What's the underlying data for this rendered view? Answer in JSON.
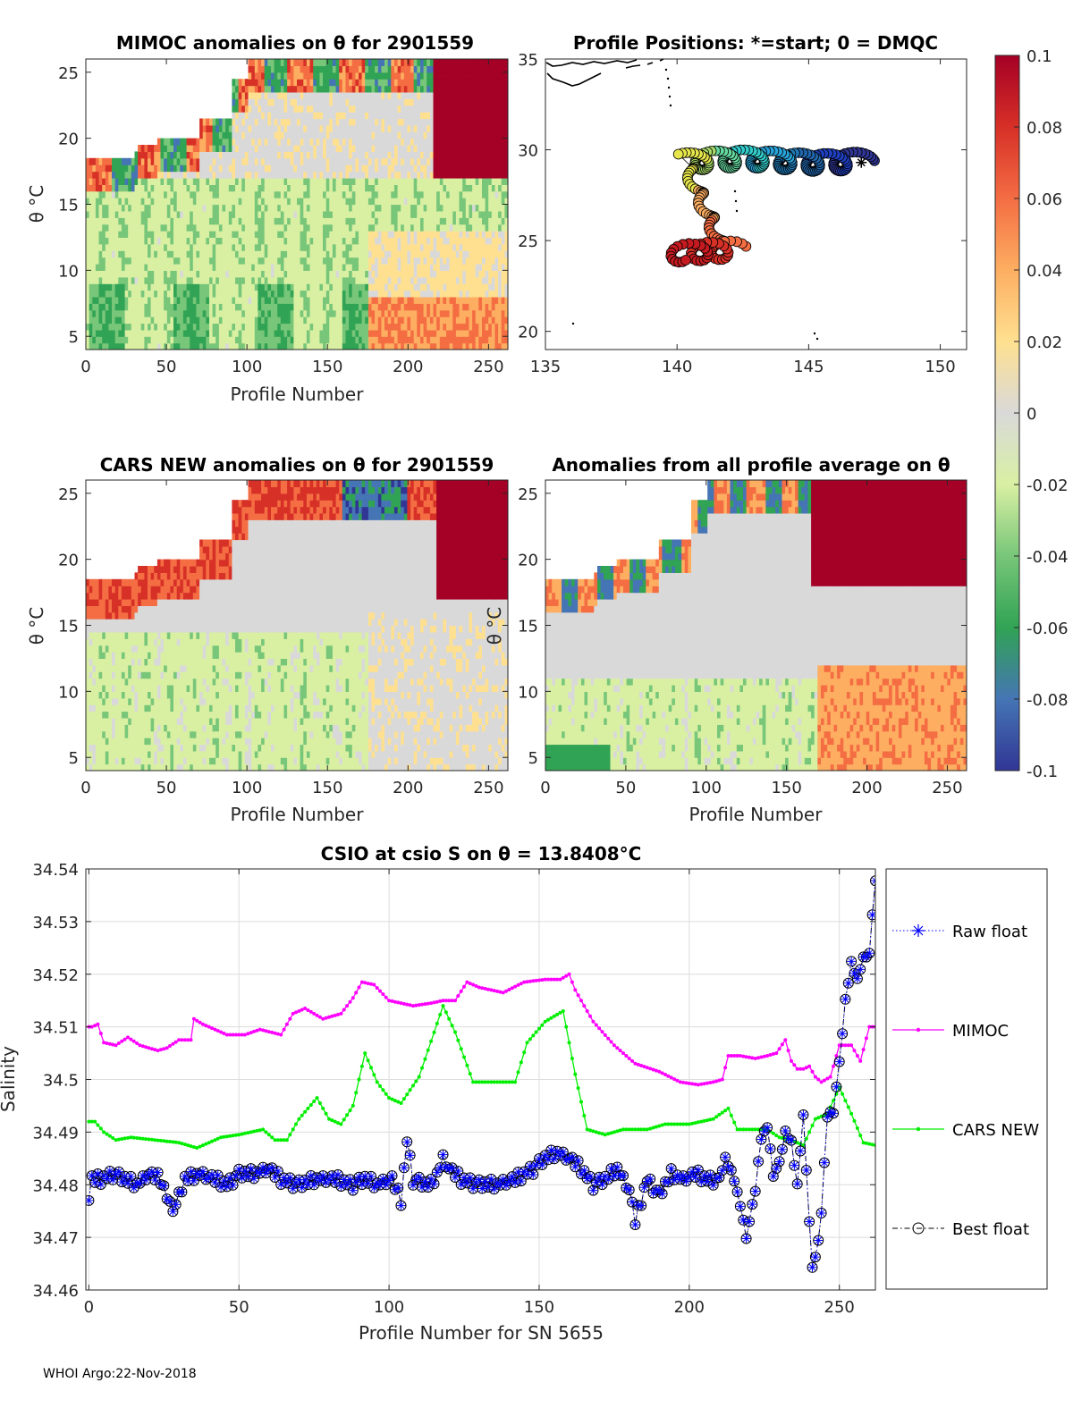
{
  "footer": "WHOI Argo:22-Nov-2018",
  "colors": {
    "mimoc": "#ff00ff",
    "cars": "#00ee00",
    "raw": "#0000ff",
    "best": "#000000"
  },
  "colorbar": {
    "ticks": [
      "0.1",
      "0.08",
      "0.06",
      "0.04",
      "0.02",
      "0",
      "-0.02",
      "-0.04",
      "-0.06",
      "-0.08",
      "-0.1"
    ],
    "palette": [
      "#a50026",
      "#d73027",
      "#f46d43",
      "#fdae61",
      "#fee090",
      "#d9d9d9",
      "#d9f0a3",
      "#78c679",
      "#31a354",
      "#4575b4",
      "#313695"
    ]
  },
  "chart_data": [
    {
      "id": "mimoc",
      "type": "heatmap",
      "title": "MIMOC anomalies on θ  for 2901559",
      "xlabel": "Profile Number",
      "ylabel": "θ °C",
      "xticks": [
        "0",
        "50",
        "100",
        "150",
        "200",
        "250"
      ],
      "yticks": [
        "5",
        "10",
        "15",
        "20",
        "25"
      ],
      "xlim": [
        0,
        262
      ],
      "ylim": [
        4,
        26
      ]
    },
    {
      "id": "positions",
      "type": "scatter",
      "title": "Profile Positions: *=start; 0 = DMQC",
      "xticks": [
        "135",
        "140",
        "145",
        "150"
      ],
      "yticks": [
        "20",
        "25",
        "30",
        "35"
      ],
      "xlim": [
        135,
        151
      ],
      "ylim": [
        19,
        35
      ],
      "start": [
        147,
        29.3
      ]
    },
    {
      "id": "cars",
      "type": "heatmap",
      "title": "CARS NEW anomalies on θ for 2901559",
      "xlabel": "Profile Number",
      "ylabel": "θ °C",
      "xticks": [
        "0",
        "50",
        "100",
        "150",
        "200",
        "250"
      ],
      "yticks": [
        "5",
        "10",
        "15",
        "20",
        "25"
      ],
      "xlim": [
        0,
        262
      ],
      "ylim": [
        4,
        26
      ]
    },
    {
      "id": "avg",
      "type": "heatmap",
      "title": "Anomalies from all profile average on θ",
      "xlabel": "Profile Number",
      "ylabel": "θ °C",
      "xticks": [
        "0",
        "50",
        "100",
        "150",
        "200",
        "250"
      ],
      "yticks": [
        "5",
        "10",
        "15",
        "20",
        "25"
      ],
      "xlim": [
        0,
        262
      ],
      "ylim": [
        4,
        26
      ]
    },
    {
      "id": "salinity",
      "type": "line",
      "title": "CSIO at csio S on θ = 13.8408°C",
      "xlabel": "Profile Number for SN 5655",
      "ylabel": "Salinity",
      "xticks": [
        "0",
        "50",
        "100",
        "150",
        "200",
        "250"
      ],
      "yticks": [
        "34.46",
        "34.47",
        "34.48",
        "34.49",
        "34.5",
        "34.51",
        "34.52",
        "34.53",
        "34.54"
      ],
      "xlim": [
        -1,
        262
      ],
      "ylim": [
        34.46,
        34.54
      ],
      "legend": [
        "Raw float",
        "MIMOC",
        "CARS NEW",
        "Best float"
      ],
      "mimoc_keys": [
        [
          0,
          34.51
        ],
        [
          1,
          34.51
        ],
        [
          3,
          34.5105
        ],
        [
          5,
          34.507
        ],
        [
          9,
          34.5065
        ],
        [
          13,
          34.508
        ],
        [
          17,
          34.5065
        ],
        [
          23,
          34.5055
        ],
        [
          26,
          34.506
        ],
        [
          30,
          34.5075
        ],
        [
          34,
          34.5075
        ],
        [
          35,
          34.5115
        ],
        [
          38,
          34.5105
        ],
        [
          42,
          34.5095
        ],
        [
          46,
          34.5085
        ],
        [
          52,
          34.5085
        ],
        [
          57,
          34.5095
        ],
        [
          64,
          34.5085
        ],
        [
          68,
          34.5125
        ],
        [
          72,
          34.5135
        ],
        [
          78,
          34.5115
        ],
        [
          84,
          34.5125
        ],
        [
          88,
          34.5155
        ],
        [
          91,
          34.5185
        ],
        [
          95,
          34.518
        ],
        [
          100,
          34.515
        ],
        [
          108,
          34.514
        ],
        [
          114,
          34.5145
        ],
        [
          118,
          34.515
        ],
        [
          122,
          34.515
        ],
        [
          126,
          34.5185
        ],
        [
          130,
          34.5175
        ],
        [
          138,
          34.5165
        ],
        [
          145,
          34.5185
        ],
        [
          152,
          34.519
        ],
        [
          157,
          34.519
        ],
        [
          160,
          34.52
        ],
        [
          162,
          34.517
        ],
        [
          168,
          34.511
        ],
        [
          175,
          34.5065
        ],
        [
          182,
          34.503
        ],
        [
          190,
          34.5015
        ],
        [
          197,
          34.4995
        ],
        [
          203,
          34.499
        ],
        [
          208,
          34.4995
        ],
        [
          211,
          34.5
        ],
        [
          213,
          34.5045
        ],
        [
          217,
          34.5045
        ],
        [
          222,
          34.504
        ],
        [
          226,
          34.5045
        ],
        [
          229,
          34.505
        ],
        [
          232,
          34.5075
        ],
        [
          234,
          34.5035
        ],
        [
          236,
          34.502
        ],
        [
          238,
          34.502
        ],
        [
          240,
          34.5025
        ],
        [
          242,
          34.5005
        ],
        [
          244,
          34.4995
        ],
        [
          247,
          34.5005
        ],
        [
          250,
          34.5065
        ],
        [
          254,
          34.5065
        ],
        [
          257,
          34.5035
        ],
        [
          260,
          34.51
        ],
        [
          262,
          34.51
        ]
      ],
      "cars_keys": [
        [
          0,
          34.492
        ],
        [
          2,
          34.492
        ],
        [
          5,
          34.49
        ],
        [
          9,
          34.4885
        ],
        [
          14,
          34.489
        ],
        [
          22,
          34.4885
        ],
        [
          30,
          34.488
        ],
        [
          36,
          34.487
        ],
        [
          44,
          34.489
        ],
        [
          50,
          34.4895
        ],
        [
          58,
          34.4905
        ],
        [
          62,
          34.4885
        ],
        [
          66,
          34.4885
        ],
        [
          70,
          34.4925
        ],
        [
          76,
          34.4965
        ],
        [
          80,
          34.4925
        ],
        [
          84,
          34.4915
        ],
        [
          88,
          34.495
        ],
        [
          92,
          34.505
        ],
        [
          96,
          34.4995
        ],
        [
          100,
          34.4965
        ],
        [
          104,
          34.4955
        ],
        [
          110,
          34.5005
        ],
        [
          118,
          34.514
        ],
        [
          122,
          34.509
        ],
        [
          128,
          34.4995
        ],
        [
          134,
          34.4995
        ],
        [
          142,
          34.4995
        ],
        [
          146,
          34.507
        ],
        [
          152,
          34.511
        ],
        [
          158,
          34.513
        ],
        [
          162,
          34.501
        ],
        [
          166,
          34.4905
        ],
        [
          172,
          34.4895
        ],
        [
          178,
          34.4905
        ],
        [
          186,
          34.4905
        ],
        [
          192,
          34.4915
        ],
        [
          200,
          34.4915
        ],
        [
          208,
          34.4925
        ],
        [
          213,
          34.4945
        ],
        [
          216,
          34.4905
        ],
        [
          220,
          34.4905
        ],
        [
          226,
          34.4905
        ],
        [
          230,
          34.489
        ],
        [
          234,
          34.4885
        ],
        [
          238,
          34.4875
        ],
        [
          242,
          34.4925
        ],
        [
          246,
          34.4935
        ],
        [
          250,
          34.4985
        ],
        [
          254,
          34.4935
        ],
        [
          258,
          34.488
        ],
        [
          262,
          34.4875
        ]
      ],
      "float_keys": [
        [
          0,
          34.477
        ],
        [
          1,
          34.481
        ],
        [
          4,
          34.481
        ],
        [
          8,
          34.482
        ],
        [
          12,
          34.481
        ],
        [
          16,
          34.48
        ],
        [
          20,
          34.482
        ],
        [
          24,
          34.481
        ],
        [
          27,
          34.476
        ],
        [
          29,
          34.476
        ],
        [
          32,
          34.481
        ],
        [
          37,
          34.482
        ],
        [
          42,
          34.481
        ],
        [
          46,
          34.48
        ],
        [
          50,
          34.482
        ],
        [
          55,
          34.482
        ],
        [
          60,
          34.483
        ],
        [
          64,
          34.481
        ],
        [
          70,
          34.48
        ],
        [
          76,
          34.481
        ],
        [
          82,
          34.481
        ],
        [
          88,
          34.48
        ],
        [
          92,
          34.481
        ],
        [
          96,
          34.48
        ],
        [
          101,
          34.481
        ],
        [
          104,
          34.477
        ],
        [
          106,
          34.4885
        ],
        [
          108,
          34.481
        ],
        [
          112,
          34.48
        ],
        [
          114,
          34.48
        ],
        [
          116,
          34.482
        ],
        [
          118,
          34.485
        ],
        [
          120,
          34.483
        ],
        [
          124,
          34.481
        ],
        [
          130,
          34.48
        ],
        [
          136,
          34.48
        ],
        [
          142,
          34.481
        ],
        [
          148,
          34.483
        ],
        [
          152,
          34.485
        ],
        [
          156,
          34.486
        ],
        [
          160,
          34.485
        ],
        [
          164,
          34.483
        ],
        [
          168,
          34.48
        ],
        [
          172,
          34.481
        ],
        [
          176,
          34.483
        ],
        [
          180,
          34.479
        ],
        [
          182,
          34.473
        ],
        [
          186,
          34.481
        ],
        [
          190,
          34.478
        ],
        [
          194,
          34.482
        ],
        [
          198,
          34.481
        ],
        [
          202,
          34.482
        ],
        [
          206,
          34.481
        ],
        [
          210,
          34.481
        ],
        [
          212,
          34.485
        ],
        [
          215,
          34.481
        ],
        [
          217,
          34.476
        ],
        [
          219,
          34.47
        ],
        [
          222,
          34.479
        ],
        [
          224,
          34.489
        ],
        [
          226,
          34.491
        ],
        [
          228,
          34.482
        ],
        [
          230,
          34.484
        ],
        [
          232,
          34.49
        ],
        [
          234,
          34.488
        ],
        [
          236,
          34.48
        ],
        [
          238,
          34.493
        ],
        [
          240,
          34.473
        ],
        [
          241,
          34.464
        ],
        [
          243,
          34.469
        ],
        [
          244,
          34.475
        ],
        [
          246,
          34.493
        ],
        [
          248,
          34.494
        ],
        [
          250,
          34.503
        ],
        [
          252,
          34.515
        ],
        [
          254,
          34.522
        ],
        [
          256,
          34.519
        ],
        [
          258,
          34.523
        ],
        [
          260,
          34.524
        ],
        [
          261,
          34.531
        ],
        [
          262,
          34.538
        ]
      ],
      "float_jitter": [
        0.0,
        0.6,
        -0.5,
        0.9,
        -0.8,
        0.4,
        -0.3,
        0.7,
        -0.9,
        0.2,
        0.8,
        -0.6,
        0.5,
        -0.4,
        0.9,
        -0.7,
        0.3,
        -0.2,
        0.6,
        -0.5
      ]
    }
  ]
}
